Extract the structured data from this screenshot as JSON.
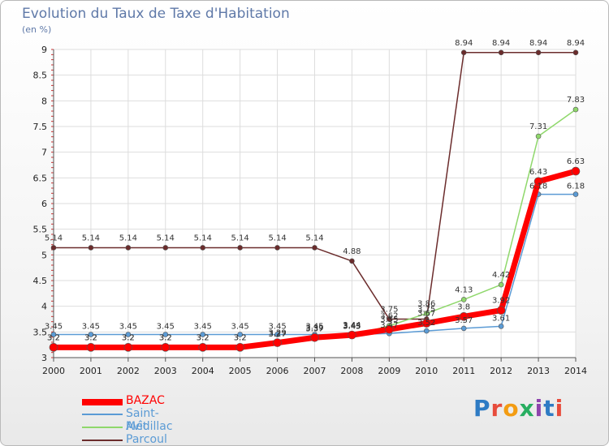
{
  "header": {
    "title": "Evolution du Taux de Taxe d'Habitation",
    "unit": "(en %)"
  },
  "chart_data": {
    "type": "line",
    "x": [
      "2000",
      "2001",
      "2002",
      "2003",
      "2004",
      "2005",
      "2006",
      "2007",
      "2008",
      "2009",
      "2010",
      "2011",
      "2012",
      "2013",
      "2014"
    ],
    "ylim": [
      3,
      9
    ],
    "yticks": [
      "3",
      "3.5",
      "4",
      "4.5",
      "5",
      "5.5",
      "6",
      "6.5",
      "7",
      "7.5",
      "8",
      "8.5",
      "9"
    ],
    "grid": true,
    "legend_position": "bottom-left",
    "series": [
      {
        "name": "BAZAC",
        "color": "#ff0000",
        "values": [
          3.2,
          3.2,
          3.2,
          3.2,
          3.2,
          3.2,
          3.29,
          3.39,
          3.44,
          3.55,
          3.67,
          3.8,
          3.92,
          6.43,
          6.63
        ],
        "labels": [
          "3.2",
          "3.2",
          "3.2",
          "3.2",
          "3.2",
          "3.2",
          "3.29",
          "3.39",
          "3.44",
          "3.55",
          "3.67",
          "3.8",
          "3.92",
          "6.43",
          "6.63"
        ]
      },
      {
        "name": "Saint-Avit",
        "color": "#5b9bd5",
        "values": [
          3.45,
          3.45,
          3.45,
          3.45,
          3.45,
          3.45,
          3.45,
          3.45,
          3.45,
          3.47,
          3.52,
          3.57,
          3.61,
          6.18,
          6.18
        ],
        "labels": [
          "3.45",
          "3.45",
          "3.45",
          "3.45",
          "3.45",
          "3.45",
          "3.45",
          "3.45",
          "3.45",
          "3.47",
          "3.52",
          "3.57",
          "3.61",
          "6.18",
          "6.18"
        ]
      },
      {
        "name": "Médillac",
        "color": "#8fd86b",
        "values": [
          3.2,
          3.2,
          3.2,
          3.2,
          3.2,
          3.2,
          3.27,
          3.37,
          3.43,
          3.62,
          3.86,
          4.13,
          4.42,
          7.31,
          7.83
        ],
        "labels": [
          "3.2",
          "3.2",
          "3.2",
          "3.2",
          "3.2",
          "3.2",
          "3.27",
          "3.37",
          "3.43",
          "3.62",
          "3.86",
          "4.13",
          "4.42",
          "7.31",
          "7.83"
        ]
      },
      {
        "name": "Parcoul",
        "color": "#6b2c2c",
        "values": [
          5.14,
          5.14,
          5.14,
          5.14,
          5.14,
          5.14,
          5.14,
          5.14,
          4.88,
          3.75,
          3.75,
          8.94,
          8.94,
          8.94,
          8.94
        ],
        "labels": [
          "5.14",
          "5.14",
          "5.14",
          "5.14",
          "5.14",
          "5.14",
          "5.14",
          "5.14",
          "4.88",
          "3.75",
          "3.75",
          "8.94",
          "8.94",
          "8.94",
          "8.94"
        ]
      }
    ]
  },
  "legend": [
    {
      "label": "BAZAC",
      "color": "#ff0000"
    },
    {
      "label": "Saint-Avit",
      "color": "#5b9bd5"
    },
    {
      "label": "Médillac",
      "color": "#8fd86b"
    },
    {
      "label": "Parcoul",
      "color": "#6b2c2c"
    }
  ],
  "logo": {
    "text": "Proxiti"
  }
}
